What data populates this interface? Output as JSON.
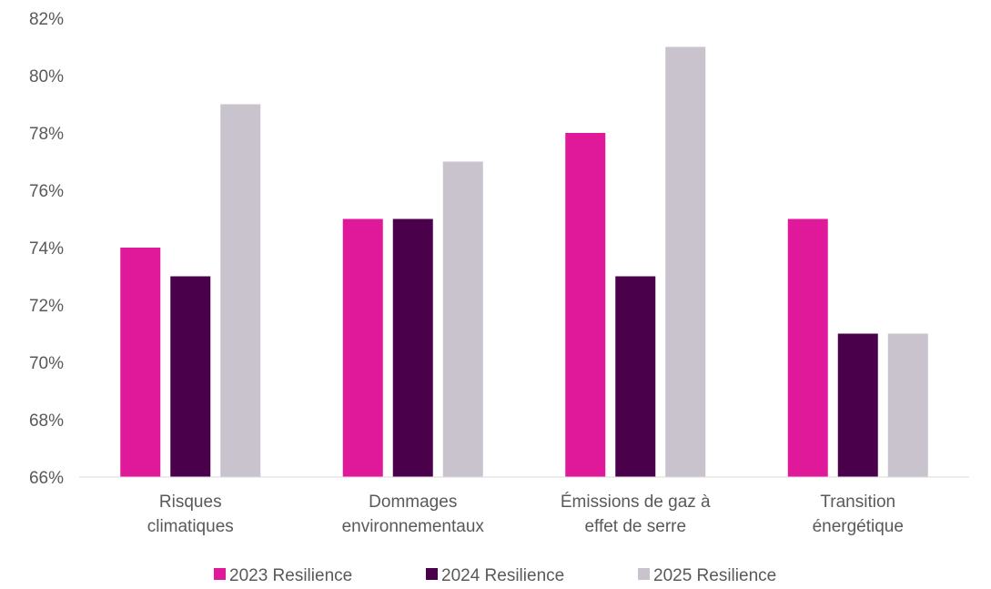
{
  "chart_data": {
    "type": "bar",
    "title": "",
    "xlabel": "",
    "ylabel": "",
    "categories": [
      [
        "Risques",
        "climatiques"
      ],
      [
        "Dommages",
        "environnementaux"
      ],
      [
        "Émissions de gaz à",
        "effet de serre"
      ],
      [
        "Transition",
        "énergétique"
      ]
    ],
    "series": [
      {
        "name": "2023 Resilience",
        "color": "#E0189A",
        "values": [
          74,
          75,
          78,
          75
        ]
      },
      {
        "name": "2024 Resilience",
        "color": "#4A004A",
        "values": [
          73,
          75,
          73,
          71
        ]
      },
      {
        "name": "2025 Resilience",
        "color": "#C9C3CE",
        "values": [
          79,
          77,
          81,
          71
        ]
      }
    ],
    "ylim": [
      66,
      82
    ],
    "yticks": [
      "66%",
      "68%",
      "70%",
      "72%",
      "74%",
      "76%",
      "78%",
      "80%",
      "82%"
    ],
    "grid": false,
    "legend": "bottom"
  }
}
